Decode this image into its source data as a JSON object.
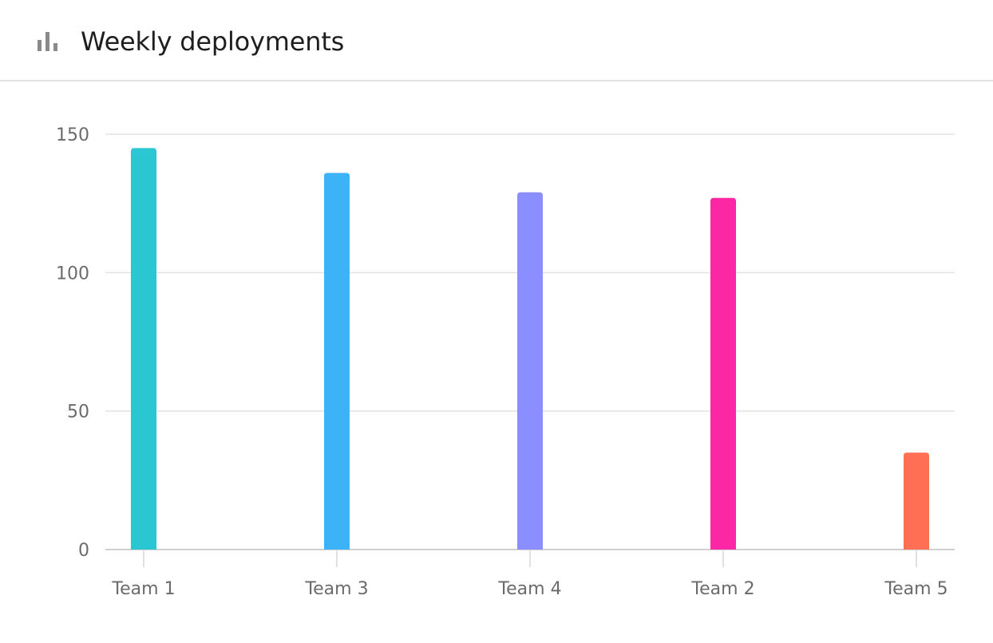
{
  "header": {
    "title": "Weekly deployments",
    "icon": "bar-chart-icon"
  },
  "chart_data": {
    "type": "bar",
    "categories": [
      "Team 1",
      "Team 3",
      "Team 4",
      "Team 2",
      "Team 5"
    ],
    "values": [
      145,
      136,
      129,
      127,
      35
    ],
    "colors": [
      "#2ac7d2",
      "#3db3f7",
      "#8a8efe",
      "#fb27a5",
      "#ff6f56"
    ],
    "ylim": [
      0,
      150
    ],
    "yticks": [
      0,
      50,
      100,
      150
    ],
    "grid": true,
    "title": "Weekly deployments",
    "xlabel": "",
    "ylabel": ""
  }
}
